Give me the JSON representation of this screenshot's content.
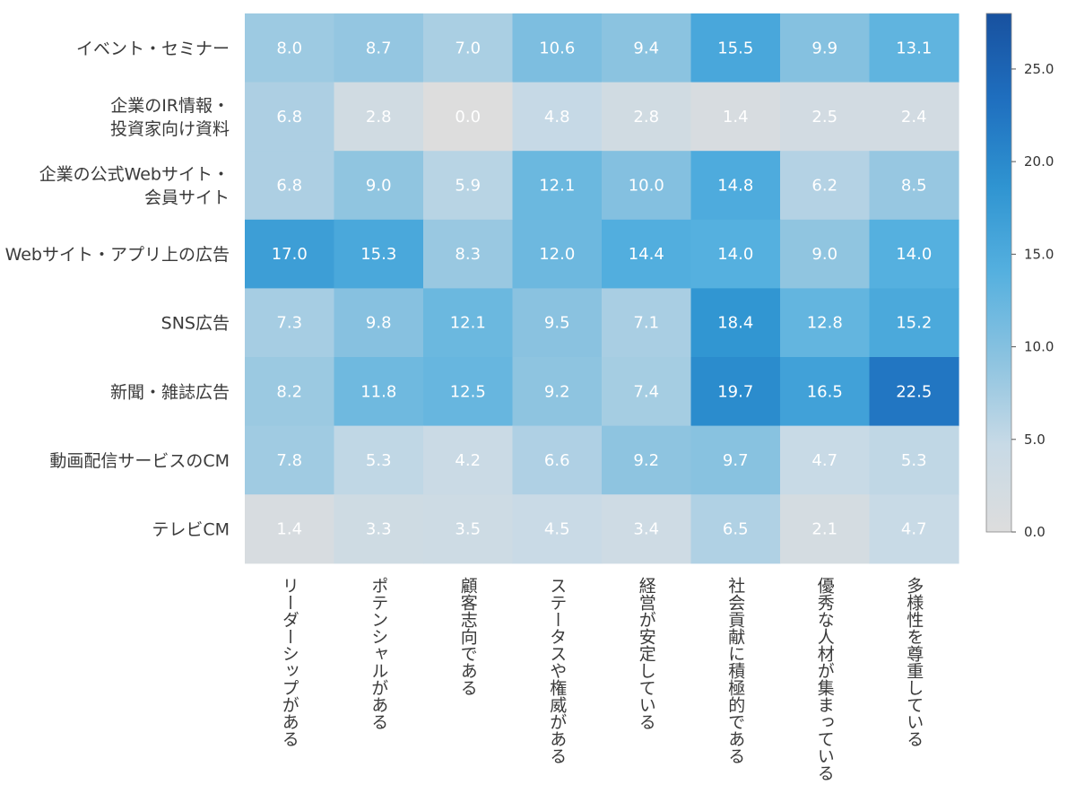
{
  "chart_data": {
    "type": "heatmap",
    "rows": [
      [
        "イベント・セミナー"
      ],
      [
        "企業のIR情報・",
        "投資家向け資料"
      ],
      [
        "企業の公式Webサイト・",
        "会員サイト"
      ],
      [
        "Webサイト・アプリ上の広告"
      ],
      [
        "SNS広告"
      ],
      [
        "新聞・雑誌広告"
      ],
      [
        "動画配信サービスのCM"
      ],
      [
        "テレビCM"
      ]
    ],
    "columns": [
      "リーダーシップがある",
      "ポテンシャルがある",
      "顧客志向である",
      "ステータスや権威がある",
      "経営が安定している",
      "社会貢献に積極的である",
      "優秀な人材が集まっている",
      "多様性を尊重している"
    ],
    "values": [
      [
        "8.0",
        "8.7",
        "7.0",
        "10.6",
        "9.4",
        "15.5",
        "9.9",
        "13.1"
      ],
      [
        "6.8",
        "2.8",
        "0.0",
        "4.8",
        "2.8",
        "1.4",
        "2.5",
        "2.4"
      ],
      [
        "6.8",
        "9.0",
        "5.9",
        "12.1",
        "10.0",
        "14.8",
        "6.2",
        "8.5"
      ],
      [
        "17.0",
        "15.3",
        "8.3",
        "12.0",
        "14.4",
        "14.0",
        "9.0",
        "14.0"
      ],
      [
        "7.3",
        "9.8",
        "12.1",
        "9.5",
        "7.1",
        "18.4",
        "12.8",
        "15.2"
      ],
      [
        "8.2",
        "11.8",
        "12.5",
        "9.2",
        "7.4",
        "19.7",
        "16.5",
        "22.5"
      ],
      [
        "7.8",
        "5.3",
        "4.2",
        "6.6",
        "9.2",
        "9.7",
        "4.7",
        "5.3"
      ],
      [
        "1.4",
        "3.3",
        "3.5",
        "4.5",
        "3.4",
        "6.5",
        "2.1",
        "4.7"
      ]
    ],
    "colorbar": {
      "min": 0,
      "max": 28,
      "ticks": [
        "0.0",
        "5.0",
        "10.0",
        "15.0",
        "20.0",
        "25.0"
      ],
      "colors": [
        "#dddddd",
        "#c8dae6",
        "#8cc3e0",
        "#55b0df",
        "#2f94d1",
        "#1f6fbf",
        "#18519f"
      ]
    }
  }
}
